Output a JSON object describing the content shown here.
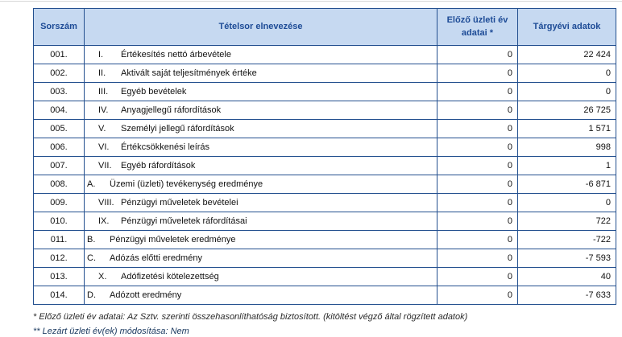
{
  "colors": {
    "table_border": "#24508f",
    "header_bg": "#c6d9f1",
    "header_text": "#1d4b96",
    "body_text": "#111111",
    "footnote2_text": "#17365d"
  },
  "table": {
    "headers": {
      "sorszam": "Sorszám",
      "tetelsor": "Tételsor elnevezése",
      "elozo": "Előző üzleti év adatai *",
      "targyev": "Tárgyévi adatok"
    },
    "rows": [
      {
        "num": "001.",
        "prefix": "I.",
        "label": "Értékesítés nettó árbevétele",
        "prev": "0",
        "current": "22 424",
        "indent": "roman"
      },
      {
        "num": "002.",
        "prefix": "II.",
        "label": "Aktivált saját teljesítmények értéke",
        "prev": "0",
        "current": "0",
        "indent": "roman"
      },
      {
        "num": "003.",
        "prefix": "III.",
        "label": "Egyéb bevételek",
        "prev": "0",
        "current": "0",
        "indent": "roman"
      },
      {
        "num": "004.",
        "prefix": "IV.",
        "label": "Anyagjellegű ráfordítások",
        "prev": "0",
        "current": "26 725",
        "indent": "roman"
      },
      {
        "num": "005.",
        "prefix": "V.",
        "label": "Személyi jellegű ráfordítások",
        "prev": "0",
        "current": "1 571",
        "indent": "roman"
      },
      {
        "num": "006.",
        "prefix": "VI.",
        "label": "Értékcsökkenési leírás",
        "prev": "0",
        "current": "998",
        "indent": "roman"
      },
      {
        "num": "007.",
        "prefix": "VII.",
        "label": "Egyéb ráfordítások",
        "prev": "0",
        "current": "1",
        "indent": "roman"
      },
      {
        "num": "008.",
        "prefix": "A.",
        "label": "Üzemi (üzleti) tevékenység eredménye",
        "prev": "0",
        "current": "-6 871",
        "indent": "letter"
      },
      {
        "num": "009.",
        "prefix": "VIII.",
        "label": "Pénzügyi műveletek bevételei",
        "prev": "0",
        "current": "0",
        "indent": "roman"
      },
      {
        "num": "010.",
        "prefix": "IX.",
        "label": "Pénzügyi műveletek ráfordításai",
        "prev": "0",
        "current": "722",
        "indent": "roman"
      },
      {
        "num": "011.",
        "prefix": "B.",
        "label": "Pénzügyi műveletek eredménye",
        "prev": "0",
        "current": "-722",
        "indent": "letter"
      },
      {
        "num": "012.",
        "prefix": "C.",
        "label": "Adózás előtti eredmény",
        "prev": "0",
        "current": "-7 593",
        "indent": "letter"
      },
      {
        "num": "013.",
        "prefix": "X.",
        "label": "Adófizetési kötelezettség",
        "prev": "0",
        "current": "40",
        "indent": "roman"
      },
      {
        "num": "014.",
        "prefix": "D.",
        "label": "Adózott eredmény",
        "prev": "0",
        "current": "-7 633",
        "indent": "letter"
      }
    ]
  },
  "footnotes": {
    "line1": "* Előző üzleti év adatai: Az Sztv. szerinti összehasonlíthatóság biztosított. (kitöltést végző által rögzített adatok)",
    "line2": "** Lezárt üzleti év(ek) módosítása: Nem"
  }
}
